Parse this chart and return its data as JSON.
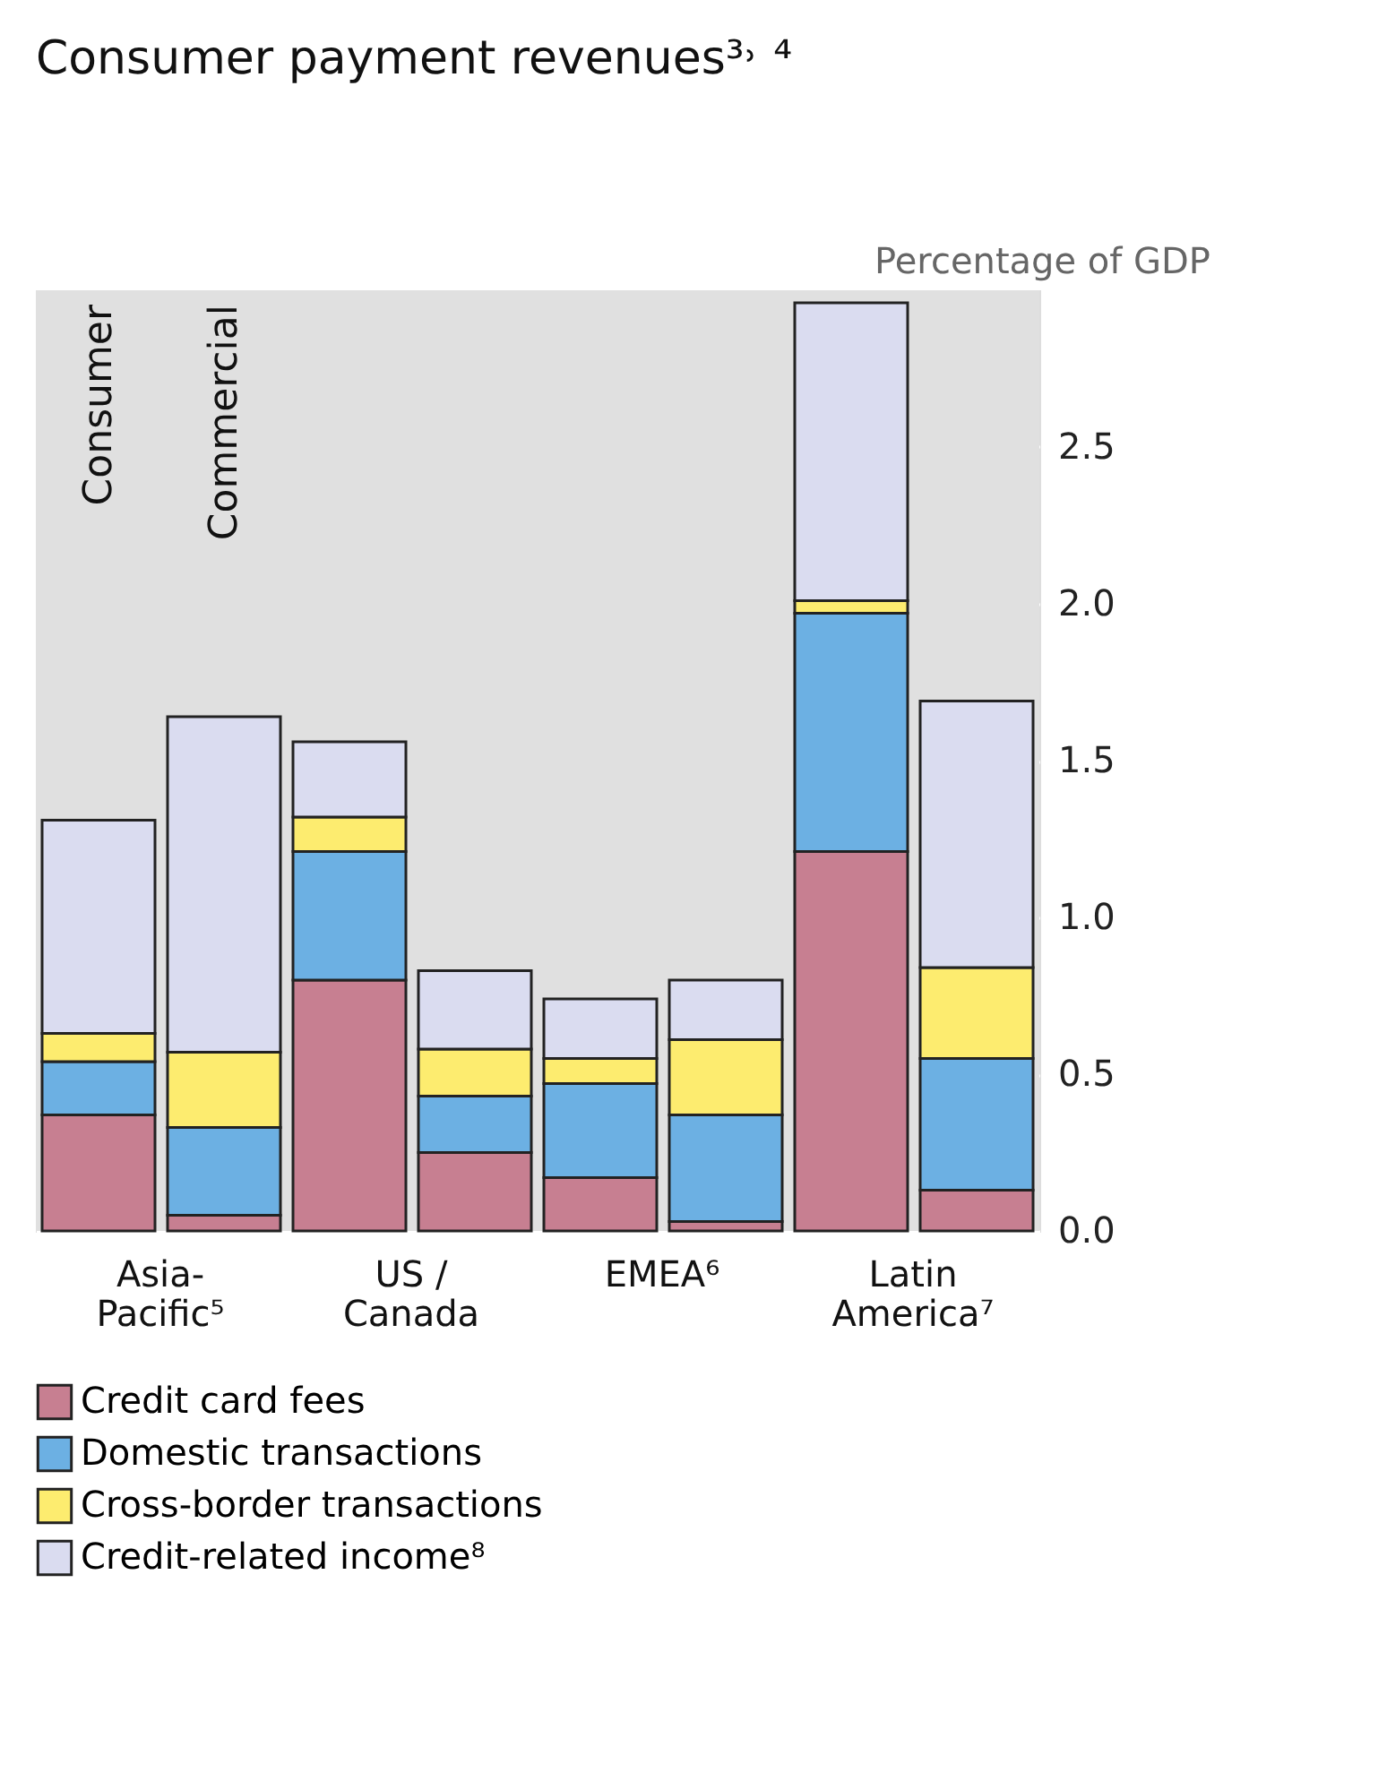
{
  "chart_data": {
    "type": "bar",
    "title": "Consumer payment revenues³˒ ⁴",
    "ylabel": "Percentage of GDP",
    "categories": [
      "Consumer",
      "Commercial",
      null,
      null,
      null,
      null,
      null,
      null
    ],
    "stacked": true,
    "series": [
      {
        "name": "Credit card fees",
        "color": "#c77f91",
        "values": [
          0.37,
          0.05,
          0.8,
          0.25,
          0.17,
          0.03,
          1.21,
          0.13
        ]
      },
      {
        "name": "Domestic transactions",
        "color": "#6cb0e3",
        "values": [
          0.17,
          0.28,
          0.41,
          0.18,
          0.3,
          0.34,
          0.76,
          0.42
        ]
      },
      {
        "name": "Cross-border transactions",
        "color": "#fdec6f",
        "values": [
          0.09,
          0.24,
          0.11,
          0.15,
          0.08,
          0.24,
          0.04,
          0.29
        ]
      },
      {
        "name": "Credit-related income⁸",
        "color": "#dadcf0",
        "values": [
          0.68,
          1.07,
          0.24,
          0.25,
          0.19,
          0.19,
          0.95,
          0.85
        ]
      }
    ],
    "annotations": [
      "Asia-\nPacific⁵",
      "US /\nCanada",
      "EMEA⁶",
      "Latin\nAmerica⁷"
    ],
    "ylim": [
      0,
      3.0
    ],
    "yticks": [
      {
        "value": 0,
        "label": "0.0"
      },
      {
        "value": 0.5,
        "label": "0.5"
      },
      {
        "value": 1.0,
        "label": "1.0"
      },
      {
        "value": 1.5,
        "label": "1.5"
      },
      {
        "value": 2.0,
        "label": "2.0"
      },
      {
        "value": 2.5,
        "label": "2.5"
      }
    ],
    "grid": "y",
    "legend": "bottom",
    "tick_labels": "y"
  }
}
